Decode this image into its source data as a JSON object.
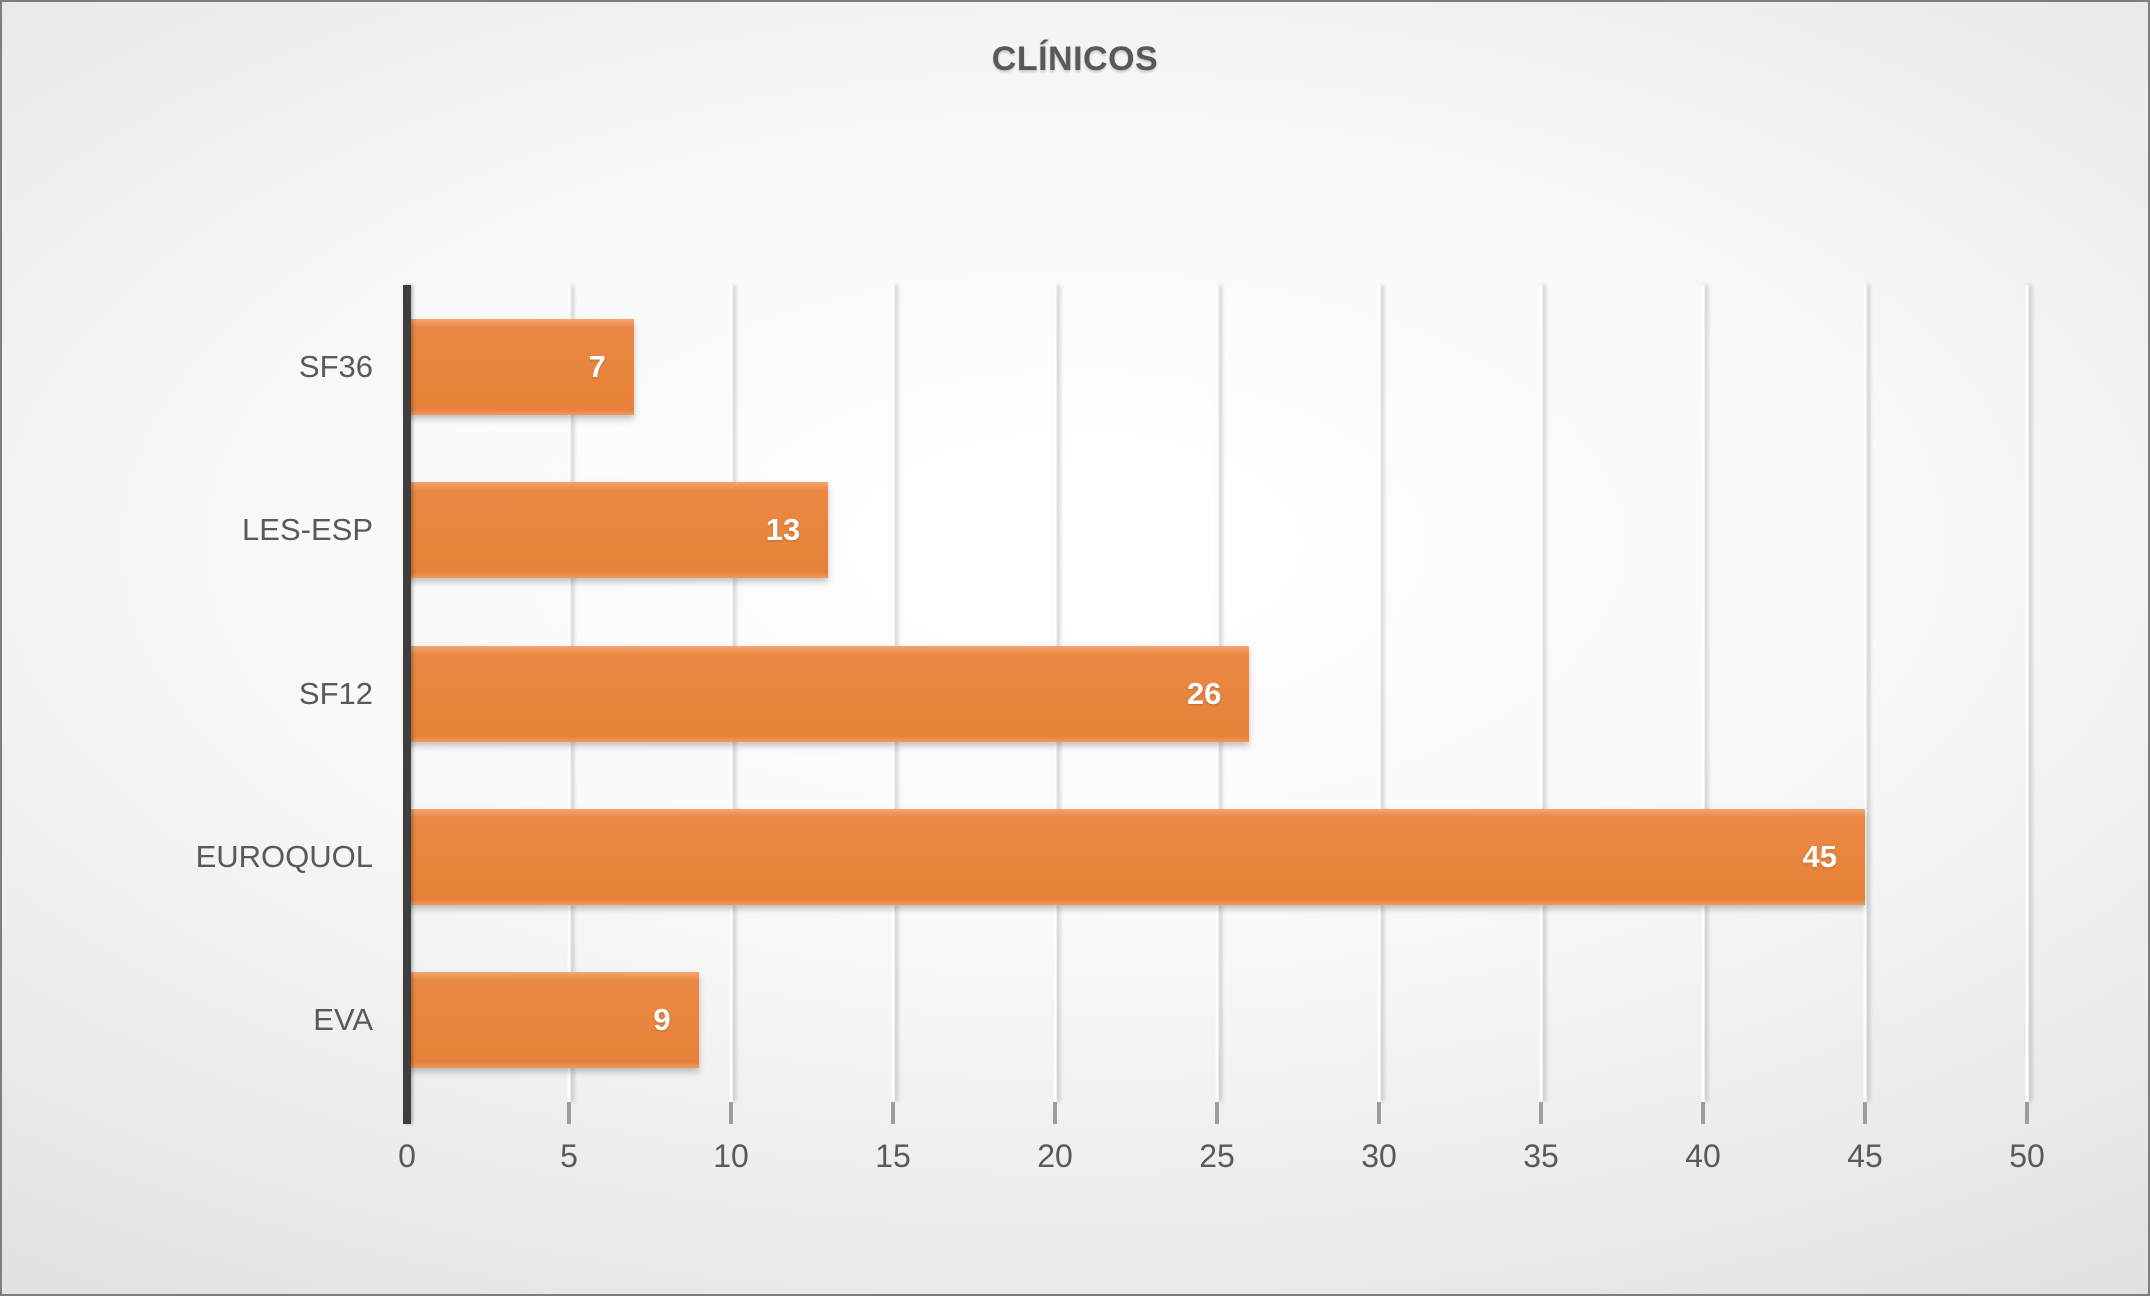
{
  "title": "CLÍNICOS",
  "colors": {
    "bar_fill": "#e88139",
    "bar_fill_light": "#f3a572",
    "text": "#595959",
    "value_label_text": "#ffffff",
    "axis_line": "#3e3e3e",
    "tick": "#9d9d9d",
    "background_center": "#ffffff",
    "background_edge": "#cfcfcf",
    "border": "#7e7e7e"
  },
  "chart_data": {
    "type": "bar",
    "orientation": "horizontal",
    "title": "CLÍNICOS",
    "categories": [
      "SF36",
      "LES-ESP",
      "SF12",
      "EUROQUOL",
      "EVA"
    ],
    "values": [
      7,
      13,
      26,
      45,
      9
    ],
    "xlabel": "",
    "ylabel": "",
    "xlim": [
      0,
      50
    ],
    "x_ticks": [
      0,
      5,
      10,
      15,
      20,
      25,
      30,
      35,
      40,
      45,
      50
    ],
    "grid": true,
    "legend": "none",
    "data_labels": "inside-end"
  }
}
